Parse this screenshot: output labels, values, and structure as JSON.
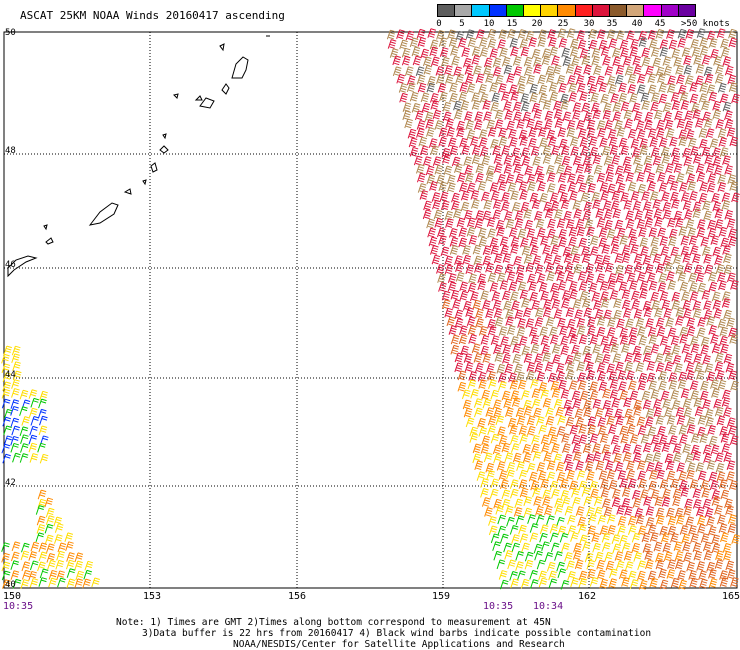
{
  "title": "ASCAT 25KM NOAA Winds 20160417 ascending",
  "legend": {
    "colors": [
      "#5e5e5e",
      "#a8a8a8",
      "#00c8ff",
      "#0032ff",
      "#00c800",
      "#ffff00",
      "#ffd400",
      "#ff8a00",
      "#ff2020",
      "#dc143c",
      "#8b5a2b",
      "#d2a679",
      "#ff00ff",
      "#a000c8",
      "#6a00a0"
    ],
    "ticks": [
      "0",
      "5",
      "10",
      "15",
      "20",
      "25",
      "30",
      "35",
      "40",
      "45",
      ">50 knots"
    ]
  },
  "axes": {
    "lat_labels": [
      "50",
      "48",
      "46",
      "44",
      "42",
      "40"
    ],
    "lon_labels": [
      "150",
      "153",
      "156",
      "159",
      "162",
      "165"
    ]
  },
  "times": [
    {
      "text": "10:35",
      "lon": "150"
    },
    {
      "text": "10:35",
      "lon": "161"
    },
    {
      "text": "10:34",
      "lon": "162.5"
    }
  ],
  "notes": [
    "Note: 1) Times are GMT 2)Times along bottom correspond to measurement at 45N",
    "3)Data buffer is 22 hrs from 20160417 4) Black wind barbs indicate possible contamination",
    "NOAA/NESDIS/Center for Satellite Applications and Research"
  ],
  "wind_colors": {
    "green": "#00c800",
    "blue": "#0032ff",
    "yellow": "#ffdd00",
    "orange": "#ff8a00",
    "dark_orange": "#e0641e",
    "red": "#dc143c",
    "brown": "#b08850",
    "dark": "#5e5e5e"
  }
}
